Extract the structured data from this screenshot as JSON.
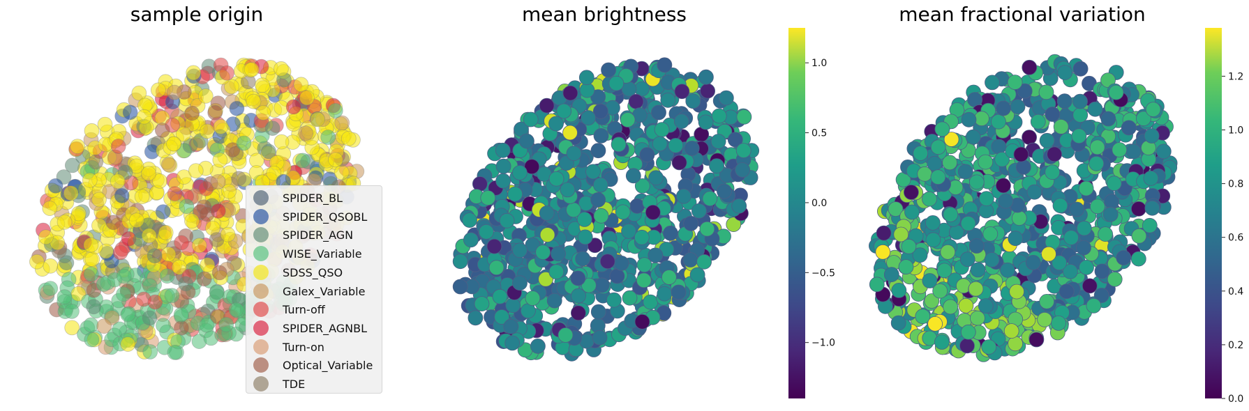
{
  "chart_data": [
    {
      "type": "scatter",
      "title": "sample origin",
      "legend_position": "lower-right",
      "legend": [
        {
          "name": "SPIDER_BL",
          "color": "#4a5d72"
        },
        {
          "name": "SPIDER_QSOBL",
          "color": "#1f4fa0"
        },
        {
          "name": "SPIDER_AGN",
          "color": "#5e8a74"
        },
        {
          "name": "WISE_Variable",
          "color": "#52c079"
        },
        {
          "name": "SDSS_QSO",
          "color": "#f5e60f"
        },
        {
          "name": "Galex_Variable",
          "color": "#c8955a"
        },
        {
          "name": "Turn-off",
          "color": "#e04545"
        },
        {
          "name": "SPIDER_AGNBL",
          "color": "#d81b3b"
        },
        {
          "name": "Turn-on",
          "color": "#d99a70"
        },
        {
          "name": "Optical_Variable",
          "color": "#9e5a45"
        },
        {
          "name": "TDE",
          "color": "#8c7c64"
        }
      ]
    },
    {
      "type": "scatter",
      "title": "mean brightness",
      "colormap": "viridis",
      "colorbar": {
        "min": -1.4,
        "max": 1.25,
        "ticks": [
          "−1.0",
          "−0.5",
          "0.0",
          "0.5",
          "1.0"
        ],
        "tick_values": [
          -1.0,
          -0.5,
          0.0,
          0.5,
          1.0
        ]
      }
    },
    {
      "type": "scatter",
      "title": "mean fractional variation",
      "colormap": "viridis",
      "colorbar": {
        "min": 0.0,
        "max": 1.38,
        "ticks": [
          "0.0",
          "0.2",
          "0.4",
          "0.6",
          "0.8",
          "1.0",
          "1.2"
        ],
        "tick_values": [
          0.0,
          0.2,
          0.4,
          0.6,
          0.8,
          1.0,
          1.2
        ]
      }
    }
  ]
}
